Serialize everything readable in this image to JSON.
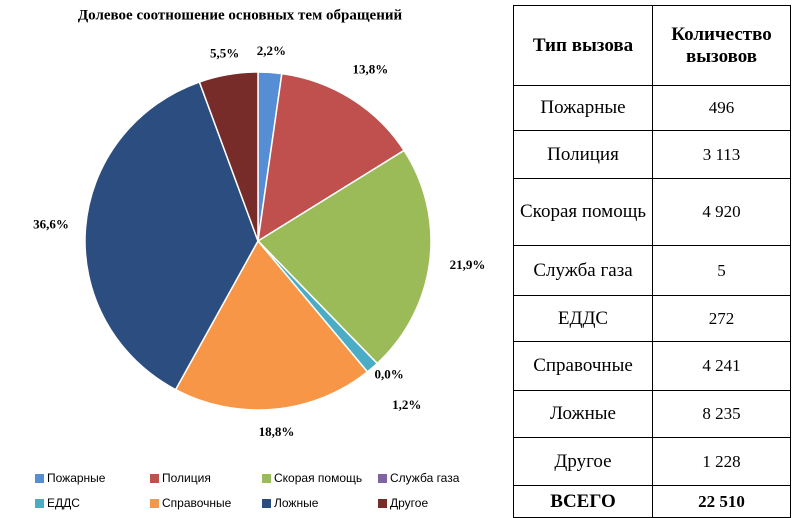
{
  "chart_data": {
    "type": "pie",
    "title": "Долевое соотношение основных тем обращений",
    "categories": [
      "Пожарные",
      "Полиция",
      "Скорая помощь",
      "Служба газа",
      "ЕДДС",
      "Справочные",
      "Ложные",
      "Другое"
    ],
    "values": [
      2.2,
      13.8,
      21.9,
      0.0,
      1.2,
      18.8,
      36.6,
      5.5
    ],
    "value_labels": [
      "2,2%",
      "13,8%",
      "21,9%",
      "0,0%",
      "1,2%",
      "18,8%",
      "36,6%",
      "5,5%"
    ],
    "colors": [
      "#558ed5",
      "#c0504d",
      "#9bbb59",
      "#8064a2",
      "#4bacc6",
      "#f79646",
      "#2c4d7f",
      "#772c2a"
    ],
    "legend": "bottom"
  },
  "table": {
    "header": [
      "Тип вызова",
      "Количество вызовов"
    ],
    "rows": [
      [
        "Пожарные",
        "496"
      ],
      [
        "Полиция",
        "3 113"
      ],
      [
        "Скорая помощь",
        "4 920"
      ],
      [
        "Служба газа",
        "5"
      ],
      [
        "ЕДДС",
        "272"
      ],
      [
        "Справочные",
        "4 241"
      ],
      [
        "Ложные",
        "8 235"
      ],
      [
        "Другое",
        "1 228"
      ]
    ],
    "total": [
      "ВСЕГО",
      "22 510"
    ]
  }
}
